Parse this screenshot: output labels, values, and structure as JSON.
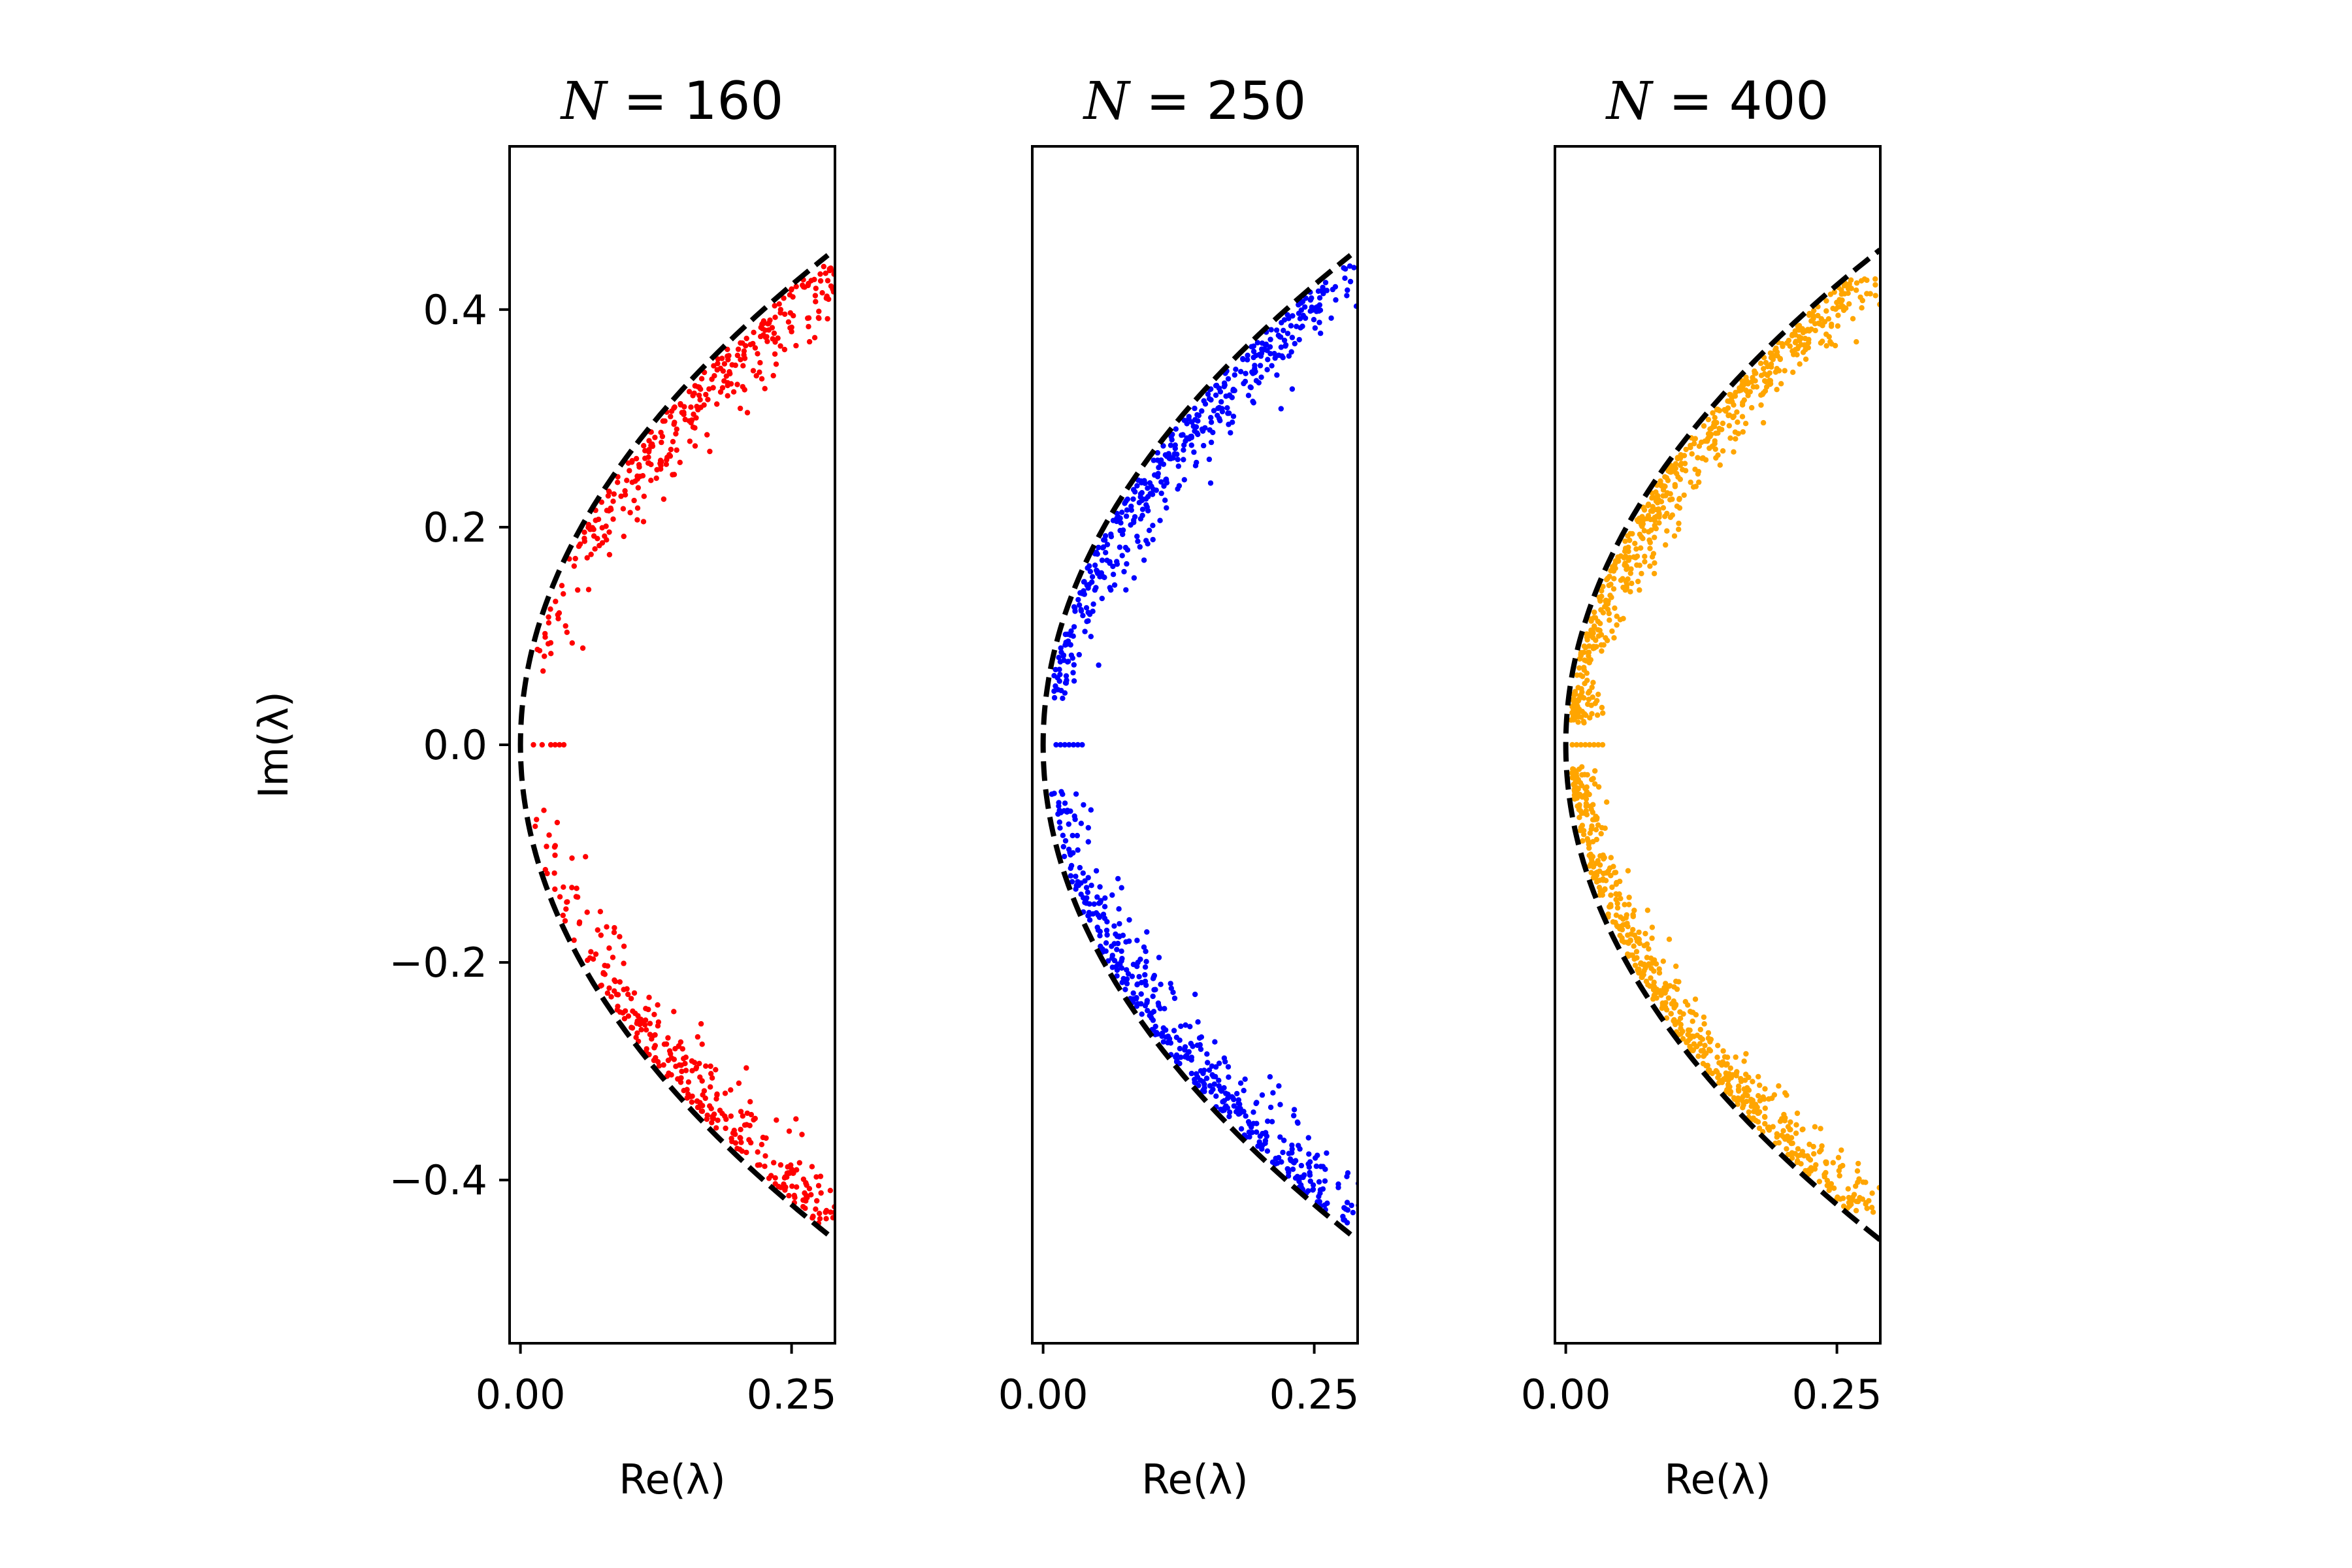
{
  "figure": {
    "colors": {
      "background": "#ffffff",
      "frame": "#000000",
      "envelope": "#000000"
    }
  },
  "chart_data": [
    {
      "type": "scatter",
      "title": "N = 160",
      "title_var": "N",
      "title_value": "160",
      "xlabel": "Re(λ)",
      "ylabel": "Im(λ)",
      "xlim": [
        -0.01,
        0.29
      ],
      "ylim": [
        -0.55,
        0.55
      ],
      "xticks": [
        0.0,
        0.25
      ],
      "xtick_labels": [
        "0.00",
        "0.25"
      ],
      "yticks": [
        0.4,
        0.2,
        0.0,
        -0.2,
        -0.4
      ],
      "ytick_labels": [
        "0.4",
        "0.2",
        "0.0",
        "−0.2",
        "−0.4"
      ],
      "color": "#ff0000",
      "cloud": {
        "im_range": [
          0.06,
          0.44
        ],
        "dense_from": 0.18,
        "max_offset": 0.035,
        "count": 650,
        "seed": 11
      },
      "real_eigs": {
        "x": [
          0.012,
          0.02,
          0.028,
          0.032,
          0.036,
          0.04
        ],
        "y": [
          0,
          0,
          0,
          0,
          0,
          0
        ]
      },
      "envelope": {
        "style": "dashed",
        "a": 0.0,
        "b": 1.4,
        "ymax": 0.45
      }
    },
    {
      "type": "scatter",
      "title": "N = 250",
      "title_var": "N",
      "title_value": "250",
      "xlabel": "Re(λ)",
      "ylabel": "",
      "xlim": [
        -0.01,
        0.29
      ],
      "ylim": [
        -0.55,
        0.55
      ],
      "xticks": [
        0.0,
        0.25
      ],
      "xtick_labels": [
        "0.00",
        "0.25"
      ],
      "yticks": [],
      "ytick_labels": [],
      "color": "#0000ff",
      "cloud": {
        "im_range": [
          0.04,
          0.44
        ],
        "dense_from": 0.12,
        "max_offset": 0.032,
        "count": 900,
        "seed": 23
      },
      "real_eigs": {
        "x": [
          0.012,
          0.016,
          0.02,
          0.024,
          0.028,
          0.032,
          0.036
        ],
        "y": [
          0,
          0,
          0,
          0,
          0,
          0,
          0
        ]
      },
      "envelope": {
        "style": "dashed",
        "a": 0.0,
        "b": 1.4,
        "ymax": 0.45
      }
    },
    {
      "type": "scatter",
      "title": "N = 400",
      "title_var": "N",
      "title_value": "400",
      "xlabel": "Re(λ)",
      "ylabel": "",
      "xlim": [
        -0.01,
        0.29
      ],
      "ylim": [
        -0.55,
        0.55
      ],
      "xticks": [
        0.0,
        0.25
      ],
      "xtick_labels": [
        "0.00",
        "0.25"
      ],
      "yticks": [],
      "ytick_labels": [],
      "color": "#ffa500",
      "cloud": {
        "im_range": [
          0.02,
          0.43
        ],
        "dense_from": 0.05,
        "max_offset": 0.026,
        "count": 1200,
        "seed": 37
      },
      "real_eigs": {
        "x": [
          0.006,
          0.01,
          0.014,
          0.018,
          0.022,
          0.026,
          0.03,
          0.034
        ],
        "y": [
          0,
          0,
          0,
          0,
          0,
          0,
          0,
          0
        ]
      },
      "envelope": {
        "style": "dashed",
        "a": 0.0,
        "b": 1.4,
        "ymax": 0.455
      }
    }
  ]
}
